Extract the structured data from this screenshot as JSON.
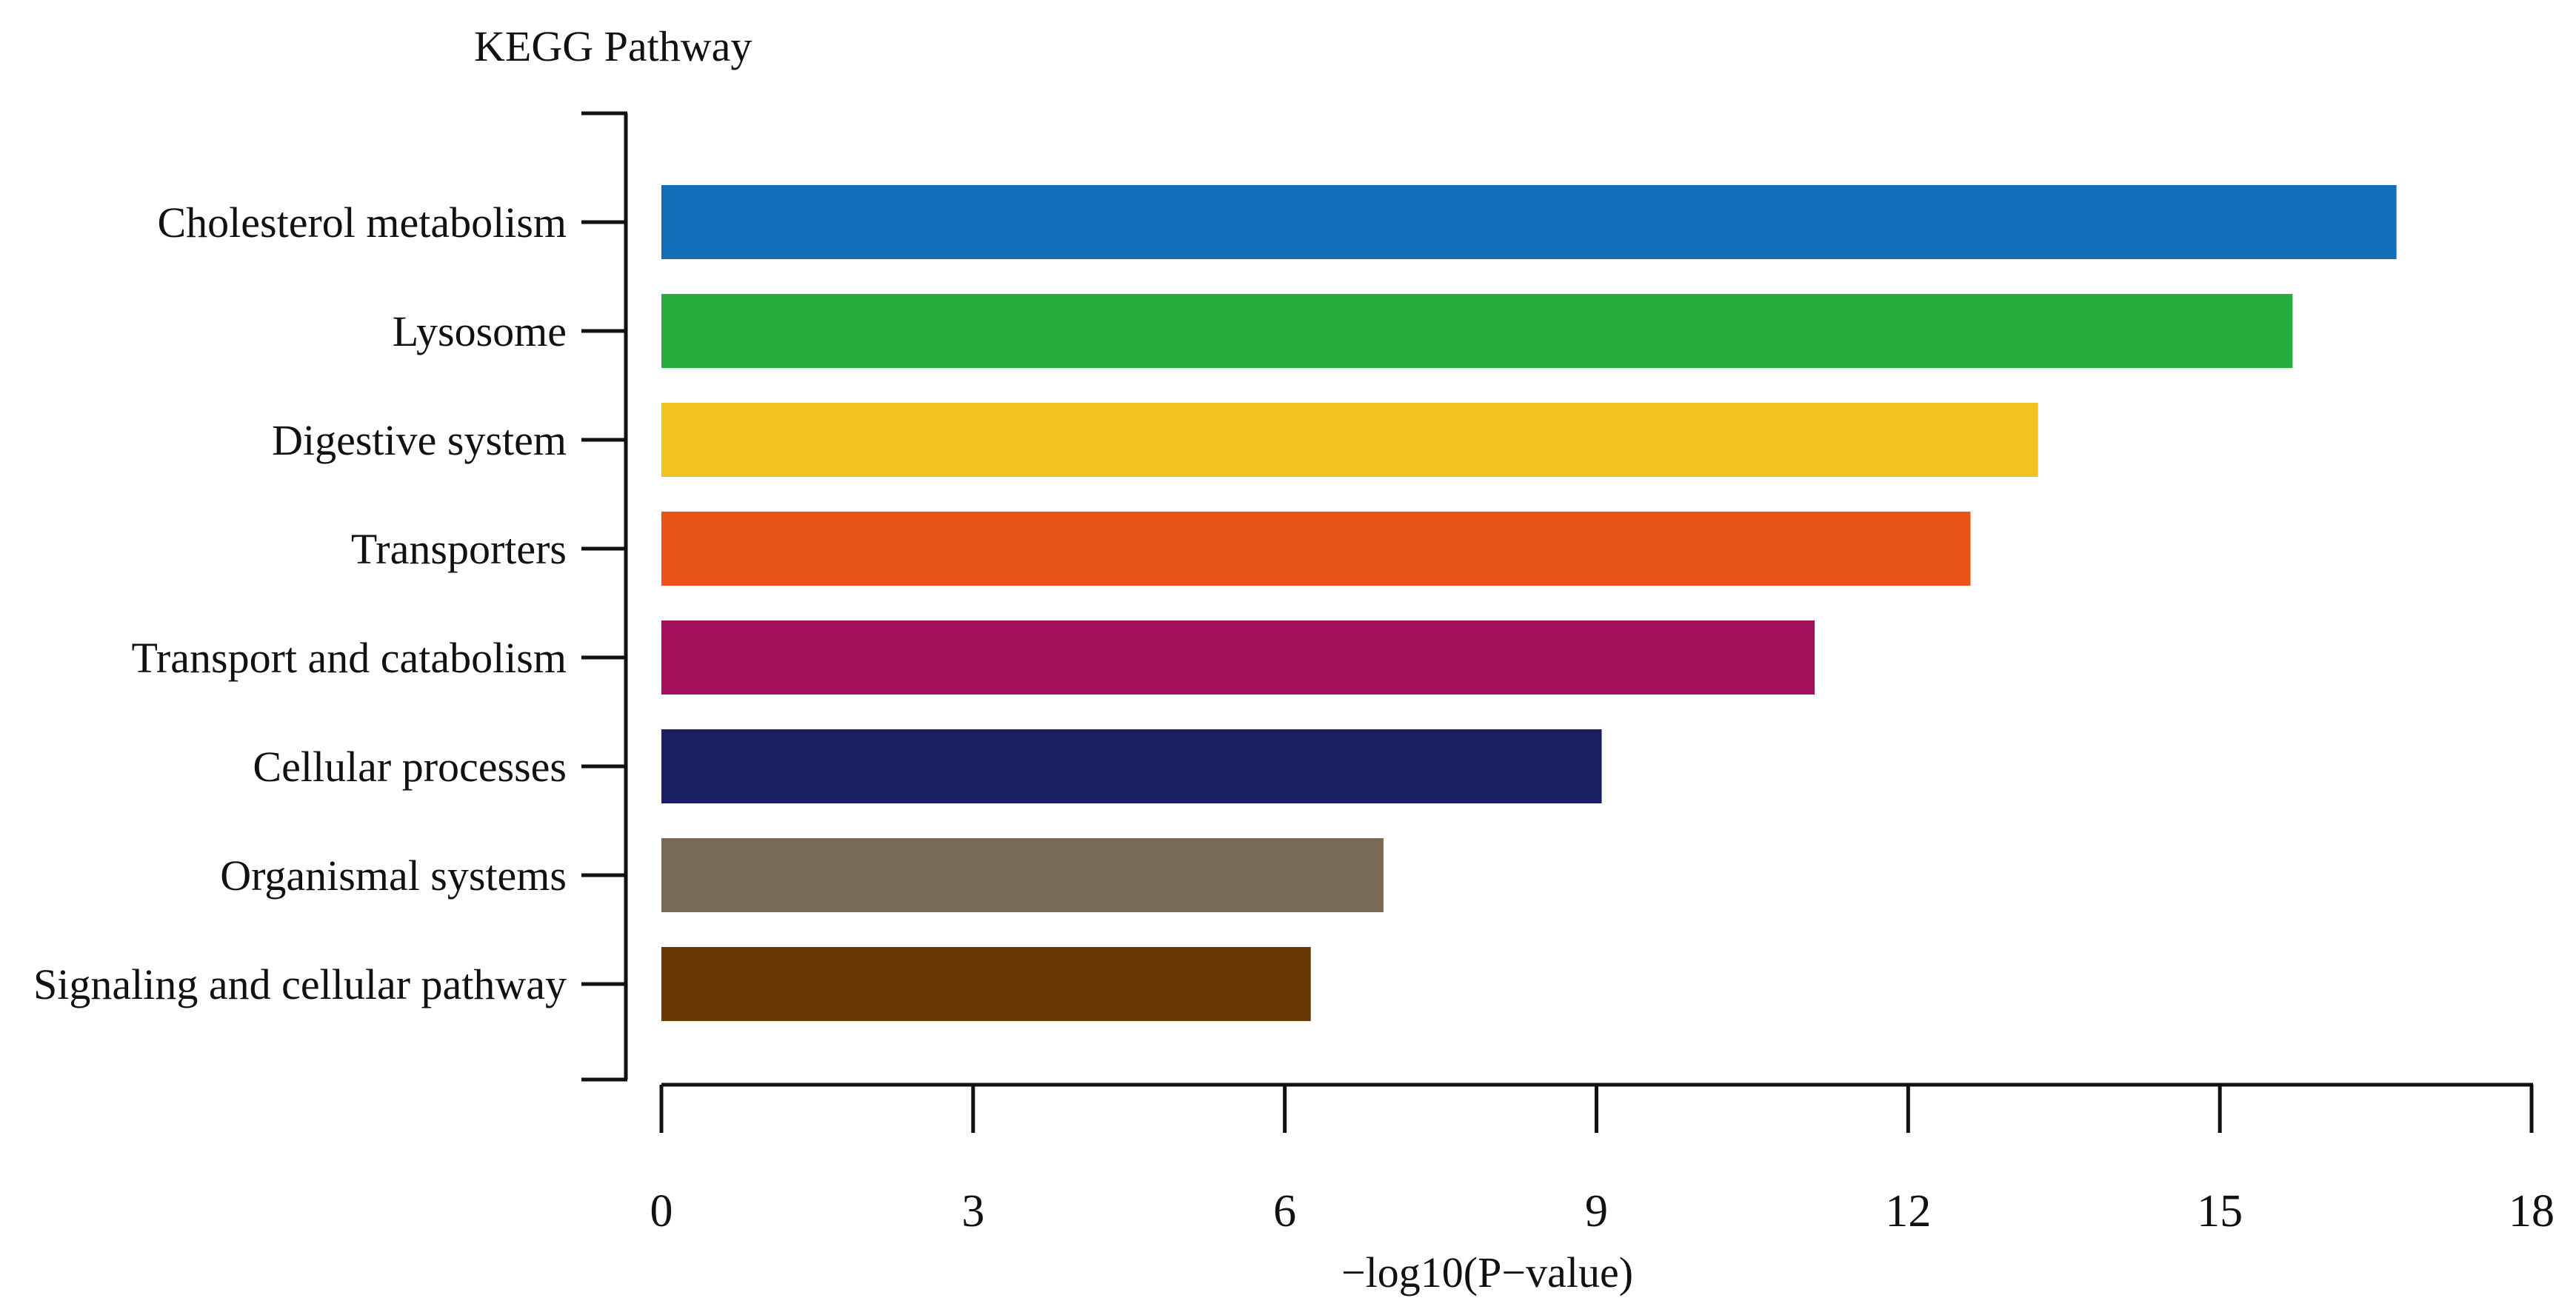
{
  "chart_data": {
    "type": "bar",
    "orientation": "horizontal",
    "axis_title": "KEGG Pathway",
    "xlabel": "−log10(P−value)",
    "xlim": [
      0,
      18
    ],
    "xticks": [
      0,
      3,
      6,
      9,
      12,
      15,
      18
    ],
    "categories": [
      "Cholesterol metabolism",
      "Lysosome",
      "Digestive system",
      "Transporters",
      "Transport and catabolism",
      "Cellular processes",
      "Organismal systems",
      "Signaling and cellular pathway"
    ],
    "values": [
      16.7,
      15.7,
      13.25,
      12.6,
      11.1,
      9.05,
      6.95,
      6.25
    ],
    "colors": [
      "#116EB8",
      "#25AC3C",
      "#F3C21E",
      "#E85415",
      "#A50E5C",
      "#1A1F62",
      "#786A55",
      "#6A3806"
    ],
    "grid": false,
    "legend": "none"
  }
}
